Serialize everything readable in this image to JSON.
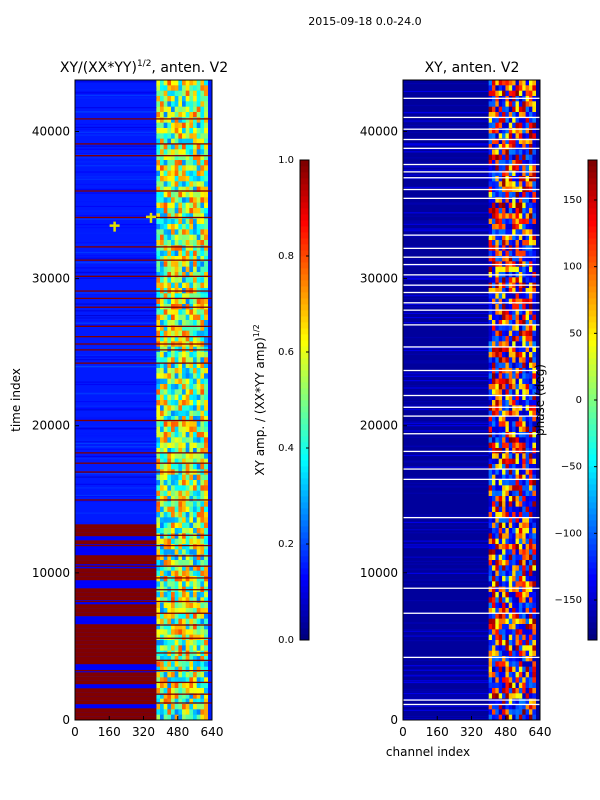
{
  "figure": {
    "suptitle": "2015-09-18 0.0-24.0"
  },
  "chart_data": [
    {
      "type": "heatmap",
      "title": "XY/(XX*YY)^{1/2}, anten. V2",
      "title_main": "XY/(XX*YY)",
      "title_sup": "1/2",
      "title_tail": ", anten. V2",
      "xlabel": "",
      "ylabel": "time index",
      "xlim": [
        0,
        640
      ],
      "ylim": [
        0,
        43500
      ],
      "xticks": [
        0,
        160,
        320,
        480,
        640
      ],
      "xtick_labels": [
        "0",
        "160",
        "320",
        "480",
        "640"
      ],
      "yticks": [
        0,
        10000,
        20000,
        30000,
        40000
      ],
      "ytick_labels": [
        "0",
        "10000",
        "20000",
        "30000",
        "40000"
      ],
      "colormap": "jet",
      "colorbar": {
        "label": "XY amp. / (XX*YY amp)^{1/2}",
        "label_main": "XY amp. / (XX*YY amp)",
        "label_sup": "1/2",
        "range": [
          0.0,
          1.0
        ],
        "ticks": [
          0.0,
          0.2,
          0.4,
          0.6,
          0.8,
          1.0
        ],
        "tick_labels": [
          "0.0",
          "0.2",
          "0.4",
          "0.6",
          "0.8",
          "1.0"
        ]
      },
      "regions": {
        "saturated_band_y": [
          0,
          13300
        ],
        "bright_channel_range": [
          380,
          620
        ],
        "saturated_value": 1.0,
        "background_value": 0.15
      },
      "red_lines_y": [
        1200,
        1800,
        2600,
        3400,
        4100,
        4600,
        5600,
        6500,
        7300,
        8100,
        8900,
        9700,
        10500,
        11200,
        11900,
        12600,
        15000,
        16900,
        17500,
        18200,
        20400,
        24300,
        25200,
        25600,
        26100,
        26800,
        28100,
        28700,
        29200,
        30200,
        31300,
        32200,
        34200,
        36000,
        38400,
        39200,
        40900
      ],
      "markers": [
        {
          "x": 185,
          "y": 33600
        },
        {
          "x": 355,
          "y": 34200
        }
      ]
    },
    {
      "type": "heatmap",
      "title": "XY, anten. V2",
      "xlabel": "channel index",
      "ylabel": "",
      "xlim": [
        0,
        640
      ],
      "ylim": [
        0,
        43500
      ],
      "xticks": [
        0,
        160,
        320,
        480,
        640
      ],
      "xtick_labels": [
        "0",
        "160",
        "320",
        "480",
        "640"
      ],
      "yticks": [
        0,
        10000,
        20000,
        30000,
        40000
      ],
      "ytick_labels": [
        "0",
        "10000",
        "20000",
        "30000",
        "40000"
      ],
      "colormap": "jet",
      "colorbar": {
        "label": "phase (deg)",
        "range": [
          -180,
          180
        ],
        "ticks": [
          -150,
          -100,
          -50,
          0,
          50,
          100,
          150
        ],
        "tick_labels": [
          "−150",
          "−100",
          "−50",
          "0",
          "50",
          "100",
          "150"
        ]
      },
      "regions": {
        "bright_channel_range": [
          400,
          620
        ],
        "background_value": -170
      },
      "white_lines_y": [
        1100,
        1400,
        4300,
        7300,
        9000,
        13800,
        16400,
        17100,
        18300,
        19500,
        20700,
        21300,
        22100,
        23800,
        25400,
        26900,
        27900,
        28400,
        29100,
        29600,
        30300,
        31000,
        31500,
        32100,
        33000,
        35500,
        36100,
        36900,
        37300,
        37800,
        38900,
        39500,
        40200,
        41000,
        42300
      ]
    }
  ]
}
